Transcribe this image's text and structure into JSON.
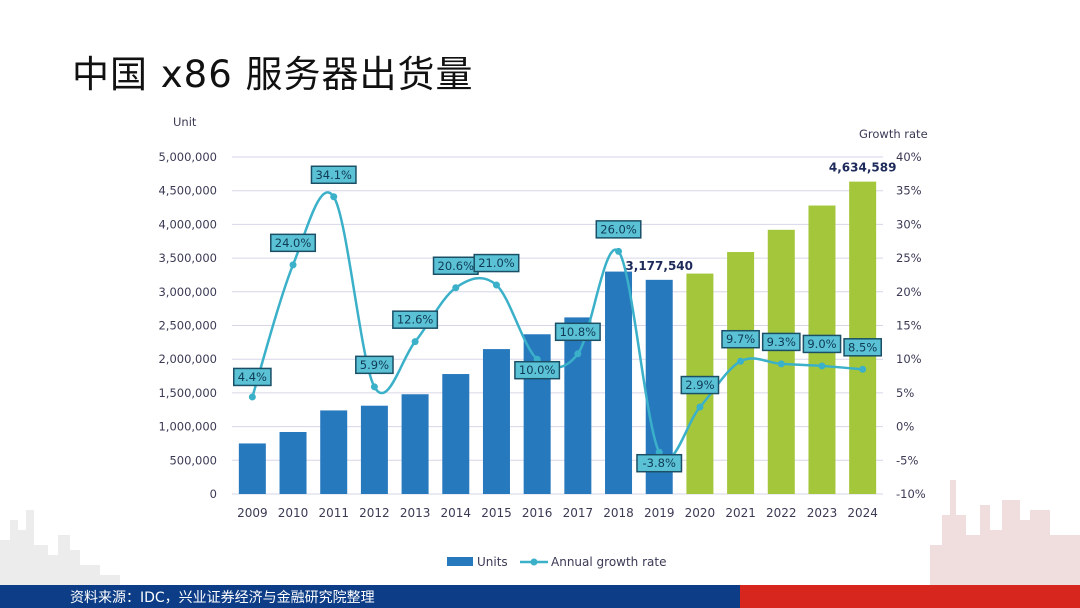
{
  "slide": {
    "title": "中国 x86 服务器出货量",
    "source": "资料来源：IDC，兴业证券经济与金融研究院整理"
  },
  "chart_data": {
    "type": "bar+line",
    "categories": [
      "2009",
      "2010",
      "2011",
      "2012",
      "2013",
      "2014",
      "2015",
      "2016",
      "2017",
      "2018",
      "2019",
      "2020",
      "2021",
      "2022",
      "2023",
      "2024"
    ],
    "series": [
      {
        "name": "Units",
        "type": "bar",
        "axis": "left",
        "values": [
          750000,
          920000,
          1240000,
          1310000,
          1480000,
          1780000,
          2150000,
          2370000,
          2620000,
          3300000,
          3177540,
          3270000,
          3590000,
          3920000,
          4280000,
          4634589
        ],
        "colors": [
          "#2779be",
          "#2779be",
          "#2779be",
          "#2779be",
          "#2779be",
          "#2779be",
          "#2779be",
          "#2779be",
          "#2779be",
          "#2779be",
          "#2779be",
          "#a4c63a",
          "#a4c63a",
          "#a4c63a",
          "#a4c63a",
          "#a4c63a"
        ]
      },
      {
        "name": "Annual growth rate",
        "type": "line",
        "axis": "right",
        "color": "#3bb0c9",
        "values": [
          4.4,
          24.0,
          34.1,
          5.9,
          12.6,
          20.6,
          21.0,
          10.0,
          10.8,
          26.0,
          -3.8,
          2.9,
          9.7,
          9.3,
          9.0,
          8.5
        ],
        "labels": [
          "4.4%",
          "24.0%",
          "34.1%",
          "5.9%",
          "12.6%",
          "20.6%",
          "21.0%",
          "10.0%",
          "10.8%",
          "26.0%",
          "-3.8%",
          "2.9%",
          "9.7%",
          "9.3%",
          "9.0%",
          "8.5%"
        ]
      }
    ],
    "bar_labels": [
      {
        "index": 10,
        "text": "3,177,540"
      },
      {
        "index": 15,
        "text": "4,634,589"
      }
    ],
    "left_axis": {
      "label": "Unit",
      "ylim": [
        0,
        5000000
      ],
      "ticks": [
        "0",
        "500,000",
        "1,000,000",
        "1,500,000",
        "2,000,000",
        "2,500,000",
        "3,000,000",
        "3,500,000",
        "4,000,000",
        "4,500,000",
        "5,000,000"
      ]
    },
    "right_axis": {
      "label": "Growth rate",
      "ylim": [
        -10,
        40
      ],
      "ticks": [
        "-10%",
        "-5%",
        "0%",
        "5%",
        "10%",
        "15%",
        "20%",
        "25%",
        "30%",
        "35%",
        "40%"
      ]
    },
    "legend": {
      "position": "bottom",
      "items": [
        "Units",
        "Annual growth rate"
      ]
    },
    "grid": true
  },
  "colors": {
    "bar_actual": "#2779be",
    "bar_forecast": "#a4c63a",
    "line": "#3bb0c9",
    "label_box_fill": "#5bc2d6",
    "label_box_stroke": "#1a4f66",
    "footer_blue": "#0d3d86",
    "footer_red": "#d7261e"
  }
}
